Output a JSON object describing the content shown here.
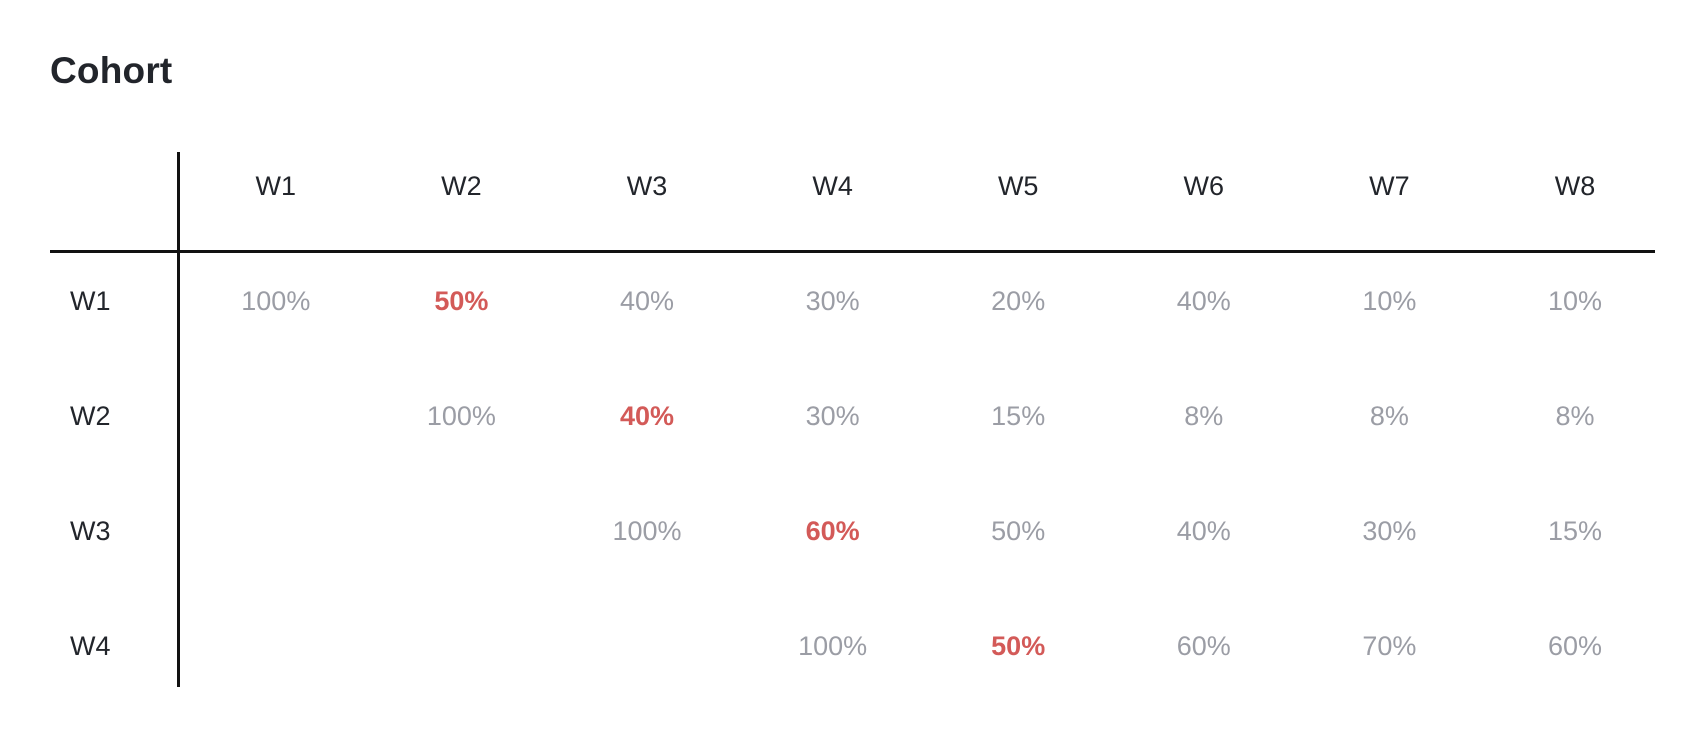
{
  "title": "Cohort",
  "chart_data": {
    "type": "table",
    "title": "Cohort",
    "columns": [
      "W1",
      "W2",
      "W3",
      "W4",
      "W5",
      "W6",
      "W7",
      "W8"
    ],
    "rows": [
      {
        "label": "W1",
        "start": 0,
        "cells": [
          "100%",
          "50%",
          "40%",
          "30%",
          "20%",
          "40%",
          "10%",
          "10%"
        ],
        "values": [
          100,
          50,
          40,
          30,
          20,
          40,
          10,
          10
        ],
        "highlight": 1
      },
      {
        "label": "W2",
        "start": 1,
        "cells": [
          "100%",
          "40%",
          "30%",
          "15%",
          "8%",
          "8%",
          "8%"
        ],
        "values": [
          100,
          40,
          30,
          15,
          8,
          8,
          8
        ],
        "highlight": 1
      },
      {
        "label": "W3",
        "start": 2,
        "cells": [
          "100%",
          "60%",
          "50%",
          "40%",
          "30%",
          "15%"
        ],
        "values": [
          100,
          60,
          50,
          40,
          30,
          15
        ],
        "highlight": 1
      },
      {
        "label": "W4",
        "start": 3,
        "cells": [
          "100%",
          "50%",
          "60%",
          "70%",
          "60%"
        ],
        "values": [
          100,
          50,
          60,
          70,
          60
        ],
        "highlight": 1
      }
    ],
    "colors": {
      "text": "#22252b",
      "value": "#9b9da5",
      "highlight": "#d35a58",
      "rule": "#111111"
    }
  }
}
